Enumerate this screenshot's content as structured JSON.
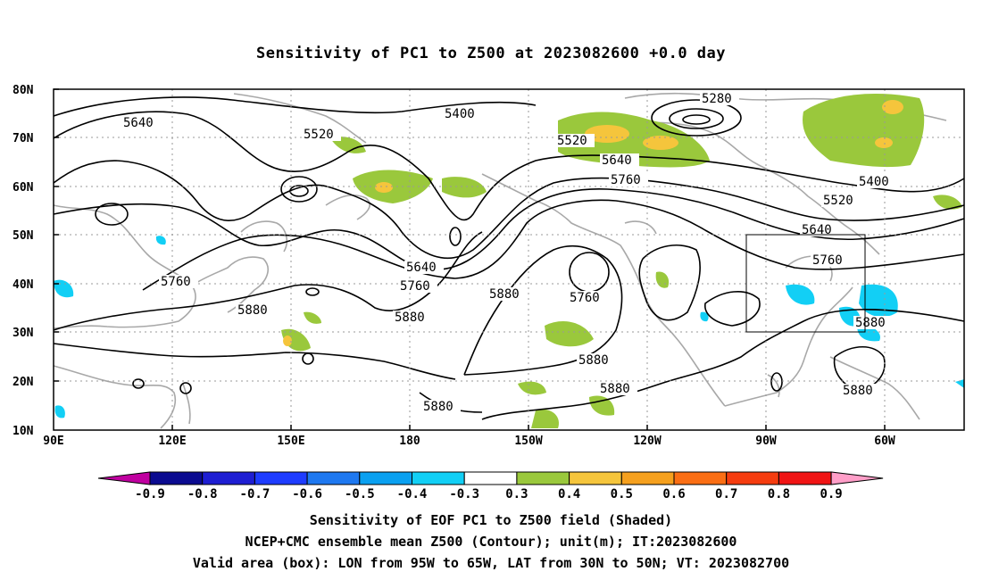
{
  "title": "Sensitivity of PC1 to Z500 at 2023082600 +0.0 day",
  "map": {
    "lat_labels": [
      "80N",
      "70N",
      "60N",
      "50N",
      "40N",
      "30N",
      "20N",
      "10N"
    ],
    "lon_labels": [
      "90E",
      "120E",
      "150E",
      "180",
      "150W",
      "120W",
      "90W",
      "60W"
    ],
    "contour_labels": [
      "5640",
      "5520",
      "5400",
      "5280",
      "5520",
      "5640",
      "5760",
      "5400",
      "5520",
      "5640",
      "5760",
      "5640",
      "5760",
      "5760",
      "5880",
      "5880",
      "5760",
      "5880",
      "5880",
      "5880",
      "5880",
      "5880"
    ],
    "box": {
      "lon_from": "95W",
      "lon_to": "65W",
      "lat_from": "30N",
      "lat_to": "50N"
    }
  },
  "colorbar": {
    "labels": [
      "-0.9",
      "-0.8",
      "-0.7",
      "-0.6",
      "-0.5",
      "-0.4",
      "-0.3",
      "0.3",
      "0.4",
      "0.5",
      "0.6",
      "0.7",
      "0.8",
      "0.9"
    ],
    "colors": [
      "#0b0b90",
      "#1e1ed2",
      "#1e3cff",
      "#1e78f0",
      "#0aa0f0",
      "#12cff5",
      "#ffffff",
      "#9ac83c",
      "#f5c53c",
      "#f5a01e",
      "#fa6e14",
      "#f53c0f",
      "#f01414"
    ],
    "left_arrow_color": "#c000a0",
    "right_arrow_color": "#ff9ec8"
  },
  "captions": [
    "Sensitivity of EOF PC1 to Z500 field (Shaded)",
    "NCEP+CMC ensemble mean Z500 (Contour); unit(m); IT:2023082600",
    "Valid area (box): LON from 95W to 65W, LAT from 30N to 50N; VT: 2023082700"
  ]
}
